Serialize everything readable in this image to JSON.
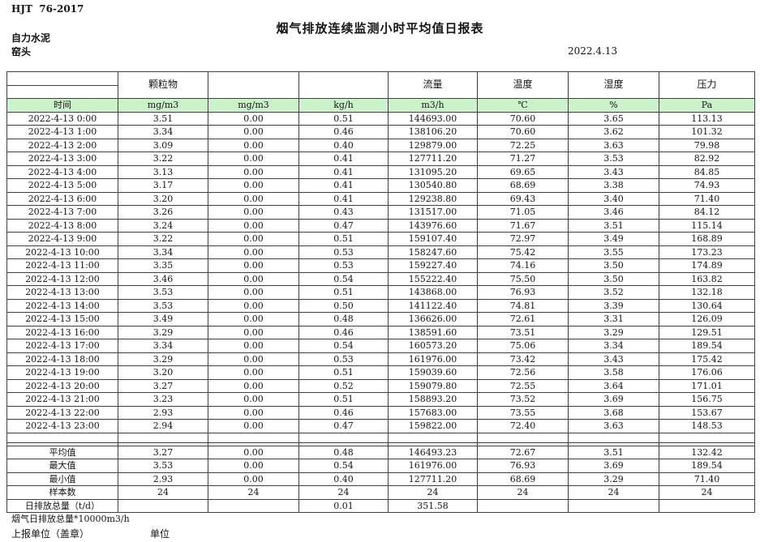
{
  "page": {
    "doc_code": "HJT  76-2017",
    "title": "烟气排放连续监测小时平均值日报表",
    "company": "自力水泥",
    "kiln": "窑头",
    "date": "2022.4.13"
  },
  "table": {
    "header_fill": "#ccf2cc",
    "group_headers": [
      "",
      "颗粒物",
      "",
      "",
      "流量",
      "温度",
      "湿度",
      "压力"
    ],
    "unit_row": [
      "时间",
      "mg/m3",
      "mg/m3",
      "kg/h",
      "m3/h",
      "℃",
      "%",
      "Pa"
    ],
    "rows": [
      [
        "2022-4-13 0:00",
        "3.51",
        "0.00",
        "0.51",
        "144693.00",
        "70.60",
        "3.65",
        "113.13"
      ],
      [
        "2022-4-13 1:00",
        "3.34",
        "0.00",
        "0.46",
        "138106.20",
        "70.60",
        "3.62",
        "101.32"
      ],
      [
        "2022-4-13 2:00",
        "3.09",
        "0.00",
        "0.40",
        "129879.00",
        "72.25",
        "3.63",
        "79.98"
      ],
      [
        "2022-4-13 3:00",
        "3.22",
        "0.00",
        "0.41",
        "127711.20",
        "71.27",
        "3.53",
        "82.92"
      ],
      [
        "2022-4-13 4:00",
        "3.13",
        "0.00",
        "0.41",
        "131095.20",
        "69.65",
        "3.43",
        "84.85"
      ],
      [
        "2022-4-13 5:00",
        "3.17",
        "0.00",
        "0.41",
        "130540.80",
        "68.69",
        "3.38",
        "74.93"
      ],
      [
        "2022-4-13 6:00",
        "3.20",
        "0.00",
        "0.41",
        "129238.80",
        "69.43",
        "3.40",
        "71.40"
      ],
      [
        "2022-4-13 7:00",
        "3.26",
        "0.00",
        "0.43",
        "131517.00",
        "71.05",
        "3.46",
        "84.12"
      ],
      [
        "2022-4-13 8:00",
        "3.24",
        "0.00",
        "0.47",
        "143976.60",
        "71.67",
        "3.51",
        "115.14"
      ],
      [
        "2022-4-13 9:00",
        "3.22",
        "0.00",
        "0.51",
        "159107.40",
        "72.97",
        "3.49",
        "168.89"
      ],
      [
        "2022-4-13 10:00",
        "3.34",
        "0.00",
        "0.53",
        "158247.60",
        "75.42",
        "3.55",
        "173.23"
      ],
      [
        "2022-4-13 11:00",
        "3.35",
        "0.00",
        "0.53",
        "159227.40",
        "74.16",
        "3.50",
        "174.89"
      ],
      [
        "2022-4-13 12:00",
        "3.46",
        "0.00",
        "0.54",
        "155222.40",
        "75.50",
        "3.50",
        "163.82"
      ],
      [
        "2022-4-13 13:00",
        "3.53",
        "0.00",
        "0.51",
        "143868.00",
        "76.93",
        "3.52",
        "132.18"
      ],
      [
        "2022-4-13 14:00",
        "3.53",
        "0.00",
        "0.50",
        "141122.40",
        "74.81",
        "3.39",
        "130.64"
      ],
      [
        "2022-4-13 15:00",
        "3.49",
        "0.00",
        "0.48",
        "136626.00",
        "72.61",
        "3.31",
        "126.09"
      ],
      [
        "2022-4-13 16:00",
        "3.29",
        "0.00",
        "0.46",
        "138591.60",
        "73.51",
        "3.29",
        "129.51"
      ],
      [
        "2022-4-13 17:00",
        "3.34",
        "0.00",
        "0.54",
        "160573.20",
        "75.06",
        "3.34",
        "189.54"
      ],
      [
        "2022-4-13 18:00",
        "3.29",
        "0.00",
        "0.53",
        "161976.00",
        "73.42",
        "3.43",
        "175.42"
      ],
      [
        "2022-4-13 19:00",
        "3.20",
        "0.00",
        "0.51",
        "159039.60",
        "72.56",
        "3.58",
        "176.06"
      ],
      [
        "2022-4-13 20:00",
        "3.27",
        "0.00",
        "0.52",
        "159079.80",
        "72.55",
        "3.64",
        "171.01"
      ],
      [
        "2022-4-13 21:00",
        "3.23",
        "0.00",
        "0.51",
        "158893.20",
        "73.52",
        "3.69",
        "156.75"
      ],
      [
        "2022-4-13 22:00",
        "2.93",
        "0.00",
        "0.46",
        "157683.00",
        "73.55",
        "3.68",
        "153.67"
      ],
      [
        "2022-4-13 23:00",
        "2.94",
        "0.00",
        "0.47",
        "159822.00",
        "72.40",
        "3.63",
        "148.53"
      ]
    ],
    "summary": [
      [
        "平均值",
        "3.27",
        "0.00",
        "0.48",
        "146493.23",
        "72.67",
        "3.51",
        "132.42"
      ],
      [
        "最大值",
        "3.53",
        "0.00",
        "0.54",
        "161976.00",
        "76.93",
        "3.69",
        "189.54"
      ],
      [
        "最小值",
        "2.93",
        "0.00",
        "0.40",
        "127711.20",
        "68.69",
        "3.29",
        "71.40"
      ],
      [
        "样本数",
        "24",
        "24",
        "24",
        "24",
        "24",
        "24",
        "24"
      ],
      [
        "日排放总量（t/d）",
        "",
        "",
        "0.01",
        "351.58",
        "",
        "",
        ""
      ]
    ]
  },
  "footer": {
    "note": "烟气日排放总量*10000m3/h",
    "report_label": "上报单位（盖章）",
    "unit_label": "单位"
  }
}
